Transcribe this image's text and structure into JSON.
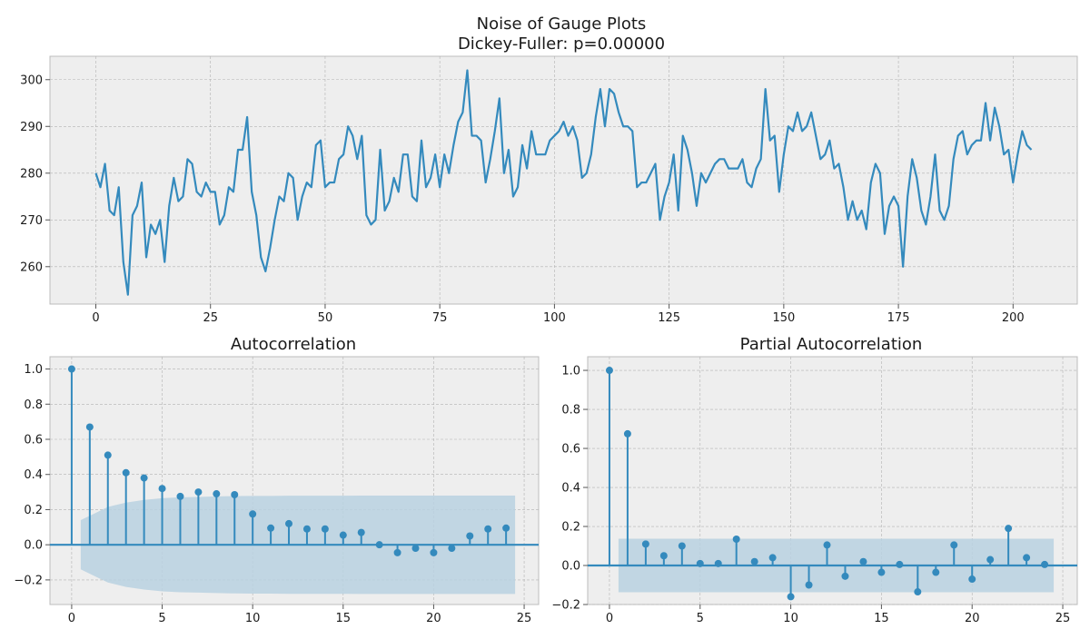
{
  "page": {
    "title_line1": "Noise of Gauge Plots",
    "title_line2": "Dickey-Fuller: p=0.00000"
  },
  "colors": {
    "line": "#348abd",
    "axes_bg": "#eeeeee",
    "grid": "#b2b2b2",
    "ci_band": "#b8d1e1",
    "frame": "#bcbcbc"
  },
  "chart_data": [
    {
      "type": "line",
      "title": "",
      "xlabel": "",
      "ylabel": "",
      "xlim": [
        -10,
        214
      ],
      "ylim": [
        252,
        305
      ],
      "xticks": [
        0,
        25,
        50,
        75,
        100,
        125,
        150,
        175,
        200
      ],
      "yticks": [
        260,
        270,
        280,
        290,
        300
      ],
      "grid": true,
      "x_start": 0,
      "values": [
        280,
        277,
        282,
        272,
        271,
        277,
        261,
        254,
        271,
        273,
        278,
        262,
        269,
        267,
        270,
        261,
        273,
        279,
        274,
        275,
        283,
        282,
        276,
        275,
        278,
        276,
        276,
        269,
        271,
        277,
        276,
        285,
        285,
        292,
        276,
        271,
        262,
        259,
        264,
        270,
        275,
        274,
        280,
        279,
        270,
        275,
        278,
        277,
        286,
        287,
        277,
        278,
        278,
        283,
        284,
        290,
        288,
        283,
        288,
        271,
        269,
        270,
        285,
        272,
        274,
        279,
        276,
        284,
        284,
        275,
        274,
        287,
        277,
        279,
        284,
        277,
        284,
        280,
        286,
        291,
        293,
        302,
        288,
        288,
        287,
        278,
        283,
        289,
        296,
        280,
        285,
        275,
        277,
        286,
        281,
        289,
        284,
        284,
        284,
        287,
        288,
        289,
        291,
        288,
        290,
        287,
        279,
        280,
        284,
        292,
        298,
        290,
        298,
        297,
        293,
        290,
        290,
        289,
        277,
        278,
        278,
        280,
        282,
        270,
        275,
        278,
        284,
        272,
        288,
        285,
        280,
        273,
        280,
        278,
        280,
        282,
        283,
        283,
        281,
        281,
        281,
        283,
        278,
        277,
        281,
        283,
        298,
        287,
        288,
        276,
        284,
        290,
        289,
        293,
        289,
        290,
        293,
        288,
        283,
        284,
        287,
        281,
        282,
        277,
        270,
        274,
        270,
        272,
        268,
        278,
        282,
        280,
        267,
        273,
        275,
        273,
        260,
        275,
        283,
        279,
        272,
        269,
        275,
        284,
        272,
        270,
        273,
        283,
        288,
        289,
        284,
        286,
        287,
        287,
        295,
        287,
        294,
        290,
        284,
        285,
        278,
        284,
        289,
        286,
        285
      ]
    },
    {
      "type": "stem",
      "title": "Autocorrelation",
      "xlabel": "",
      "ylabel": "",
      "xlim": [
        -1.2,
        25.8
      ],
      "ylim": [
        -0.34,
        1.07
      ],
      "xticks": [
        0,
        5,
        10,
        15,
        20,
        25
      ],
      "yticks": [
        -0.2,
        0.0,
        0.2,
        0.4,
        0.6,
        0.8,
        1.0
      ],
      "ytick_labels": [
        "−0.2",
        "0.0",
        "0.2",
        "0.4",
        "0.6",
        "0.8",
        "1.0"
      ],
      "grid": true,
      "lags": [
        0,
        1,
        2,
        3,
        4,
        5,
        6,
        7,
        8,
        9,
        10,
        11,
        12,
        13,
        14,
        15,
        16,
        17,
        18,
        19,
        20,
        21,
        22,
        23,
        24
      ],
      "values": [
        1.0,
        0.67,
        0.51,
        0.41,
        0.38,
        0.32,
        0.275,
        0.3,
        0.29,
        0.285,
        0.175,
        0.095,
        0.12,
        0.09,
        0.09,
        0.055,
        0.07,
        0.0,
        -0.045,
        -0.02,
        -0.045,
        -0.02,
        0.05,
        0.09,
        0.095
      ],
      "confidence_band": {
        "x": [
          0.5,
          1,
          2,
          3,
          4,
          5,
          6,
          7,
          8,
          9,
          10,
          11,
          12,
          13,
          14,
          15,
          16,
          17,
          18,
          19,
          20,
          21,
          22,
          23,
          24,
          24.5
        ],
        "upper": [
          0.14,
          0.165,
          0.215,
          0.24,
          0.255,
          0.265,
          0.27,
          0.272,
          0.275,
          0.277,
          0.278,
          0.278,
          0.279,
          0.279,
          0.279,
          0.279,
          0.28,
          0.28,
          0.28,
          0.28,
          0.28,
          0.28,
          0.28,
          0.28,
          0.28,
          0.28
        ]
      }
    },
    {
      "type": "stem",
      "title": "Partial Autocorrelation",
      "xlabel": "",
      "ylabel": "",
      "xlim": [
        -1.2,
        25.8
      ],
      "ylim": [
        -0.2,
        1.07
      ],
      "xticks": [
        0,
        5,
        10,
        15,
        20,
        25
      ],
      "yticks": [
        -0.2,
        0.0,
        0.2,
        0.4,
        0.6,
        0.8,
        1.0
      ],
      "ytick_labels": [
        "−0.2",
        "0.0",
        "0.2",
        "0.4",
        "0.6",
        "0.8",
        "1.0"
      ],
      "grid": true,
      "lags": [
        0,
        1,
        2,
        3,
        4,
        5,
        6,
        7,
        8,
        9,
        10,
        11,
        12,
        13,
        14,
        15,
        16,
        17,
        18,
        19,
        20,
        21,
        22,
        23,
        24
      ],
      "values": [
        1.0,
        0.675,
        0.11,
        0.05,
        0.1,
        0.01,
        0.01,
        0.135,
        0.02,
        0.04,
        -0.16,
        -0.1,
        0.105,
        -0.055,
        0.02,
        -0.035,
        0.005,
        -0.135,
        -0.035,
        0.105,
        -0.07,
        0.03,
        0.19,
        0.04,
        0.005
      ],
      "confidence_band": {
        "x": [
          0.5,
          24.5
        ],
        "upper": [
          0.137,
          0.137
        ]
      }
    }
  ]
}
